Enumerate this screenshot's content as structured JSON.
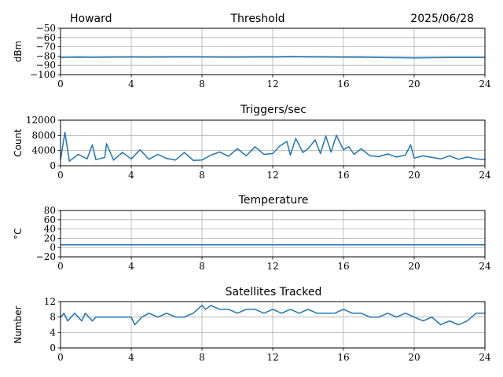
{
  "header": {
    "station": "Howard",
    "date": "2025/06/28"
  },
  "colors": {
    "line": "#1f77b4",
    "grid": "#b0b0b0",
    "axis": "#000000"
  },
  "chart_data": [
    {
      "type": "line",
      "title": "Threshold",
      "xlabel": "",
      "ylabel": "dBm",
      "xlim": [
        0,
        24
      ],
      "ylim": [
        -100,
        -50
      ],
      "xticks": [
        "0",
        "4",
        "8",
        "12",
        "16",
        "20",
        "24"
      ],
      "yticks": [
        "−50",
        "−60",
        "−70",
        "−80",
        "−90",
        "−100"
      ],
      "ytick_values": [
        -50,
        -60,
        -70,
        -80,
        -90,
        -100
      ],
      "grid": true,
      "series": [
        {
          "x": [
            0,
            1,
            2,
            3,
            4,
            5,
            6,
            7,
            8,
            9,
            10,
            11,
            12,
            13,
            14,
            15,
            16,
            17,
            18,
            19,
            20,
            21,
            22,
            23,
            24
          ],
          "y": [
            -81.5,
            -81.3,
            -81.4,
            -81.2,
            -81.0,
            -81.1,
            -81.0,
            -80.9,
            -81.0,
            -81.2,
            -81.1,
            -81.0,
            -81.0,
            -80.8,
            -80.9,
            -81.0,
            -81.1,
            -81.3,
            -81.5,
            -81.8,
            -82.0,
            -81.8,
            -81.6,
            -81.5,
            -81.5
          ]
        }
      ]
    },
    {
      "type": "line",
      "title": "Triggers/sec",
      "xlabel": "",
      "ylabel": "Count",
      "xlim": [
        0,
        24
      ],
      "ylim": [
        0,
        12000
      ],
      "xticks": [
        "0",
        "4",
        "8",
        "12",
        "16",
        "20",
        "24"
      ],
      "yticks": [
        "0",
        "4000",
        "8000",
        "12000"
      ],
      "ytick_values": [
        0,
        4000,
        8000,
        12000
      ],
      "grid": true,
      "series": [
        {
          "x": [
            0,
            0.25,
            0.5,
            1,
            1.5,
            1.8,
            2,
            2.5,
            2.6,
            3,
            3.5,
            4,
            4.5,
            5,
            5.5,
            6,
            6.5,
            7,
            7.5,
            8,
            8.5,
            9,
            9.5,
            10,
            10.5,
            11,
            11.5,
            12,
            12.4,
            12.8,
            13,
            13.3,
            13.7,
            14,
            14.4,
            14.7,
            15,
            15.3,
            15.6,
            16,
            16.3,
            16.6,
            17,
            17.5,
            18,
            18.5,
            19,
            19.5,
            19.8,
            20,
            20.5,
            21,
            21.5,
            22,
            22.5,
            23,
            23.5,
            24
          ],
          "y": [
            1500,
            8800,
            1200,
            3000,
            1800,
            5500,
            1600,
            2200,
            5800,
            1500,
            3500,
            1800,
            4200,
            1700,
            3000,
            1900,
            1500,
            3500,
            1400,
            1500,
            2800,
            3600,
            2500,
            4500,
            2600,
            5000,
            3000,
            3200,
            5200,
            6400,
            2800,
            7200,
            3500,
            4500,
            6800,
            3200,
            7800,
            3600,
            8000,
            4200,
            5000,
            3000,
            4500,
            2600,
            2400,
            3100,
            2300,
            2800,
            5500,
            2000,
            2600,
            2200,
            1800,
            2600,
            1700,
            2300,
            1800,
            1600
          ]
        }
      ]
    },
    {
      "type": "line",
      "title": "Temperature",
      "xlabel": "",
      "ylabel": "°C",
      "xlim": [
        0,
        24
      ],
      "ylim": [
        -20,
        80
      ],
      "xticks": [
        "0",
        "4",
        "8",
        "12",
        "16",
        "20",
        "24"
      ],
      "yticks": [
        "−20",
        "0",
        "20",
        "40",
        "60",
        "80"
      ],
      "ytick_values": [
        -20,
        0,
        20,
        40,
        60,
        80
      ],
      "grid": true,
      "series": [
        {
          "x": [
            0,
            24
          ],
          "y": [
            6,
            6
          ]
        }
      ]
    },
    {
      "type": "line",
      "title": "Satellites Tracked",
      "xlabel": "",
      "ylabel": "Number",
      "xlim": [
        0,
        24
      ],
      "ylim": [
        0,
        12
      ],
      "xticks": [
        "0",
        "4",
        "8",
        "12",
        "16",
        "20",
        "24"
      ],
      "yticks": [
        "0",
        "4",
        "8",
        "12"
      ],
      "ytick_values": [
        0,
        4,
        8,
        12
      ],
      "grid": true,
      "series": [
        {
          "x": [
            0,
            0.2,
            0.4,
            0.6,
            0.8,
            1,
            1.2,
            1.4,
            1.6,
            1.8,
            2,
            3,
            3.5,
            4,
            4.2,
            4.6,
            5,
            5.5,
            6,
            6.5,
            7,
            7.5,
            8,
            8.2,
            8.5,
            9,
            9.5,
            10,
            10.5,
            11,
            11.5,
            12,
            12.5,
            13,
            13.5,
            14,
            14.5,
            15,
            15.5,
            16,
            16.5,
            17,
            17.5,
            18,
            18.5,
            19,
            19.5,
            20,
            20.5,
            21,
            21.5,
            22,
            22.5,
            23,
            23.5,
            24
          ],
          "y": [
            8,
            9,
            7,
            8,
            9,
            8,
            7,
            9,
            8,
            7,
            8,
            8,
            8,
            8,
            6,
            8,
            9,
            8,
            9,
            8,
            8,
            9,
            11,
            10,
            11,
            10,
            10,
            9,
            10,
            10,
            9,
            10,
            9,
            10,
            9,
            10,
            9,
            9,
            9,
            10,
            9,
            9,
            8,
            8,
            9,
            8,
            9,
            8,
            7,
            8,
            6,
            7,
            6,
            7,
            9,
            9
          ]
        }
      ]
    }
  ]
}
